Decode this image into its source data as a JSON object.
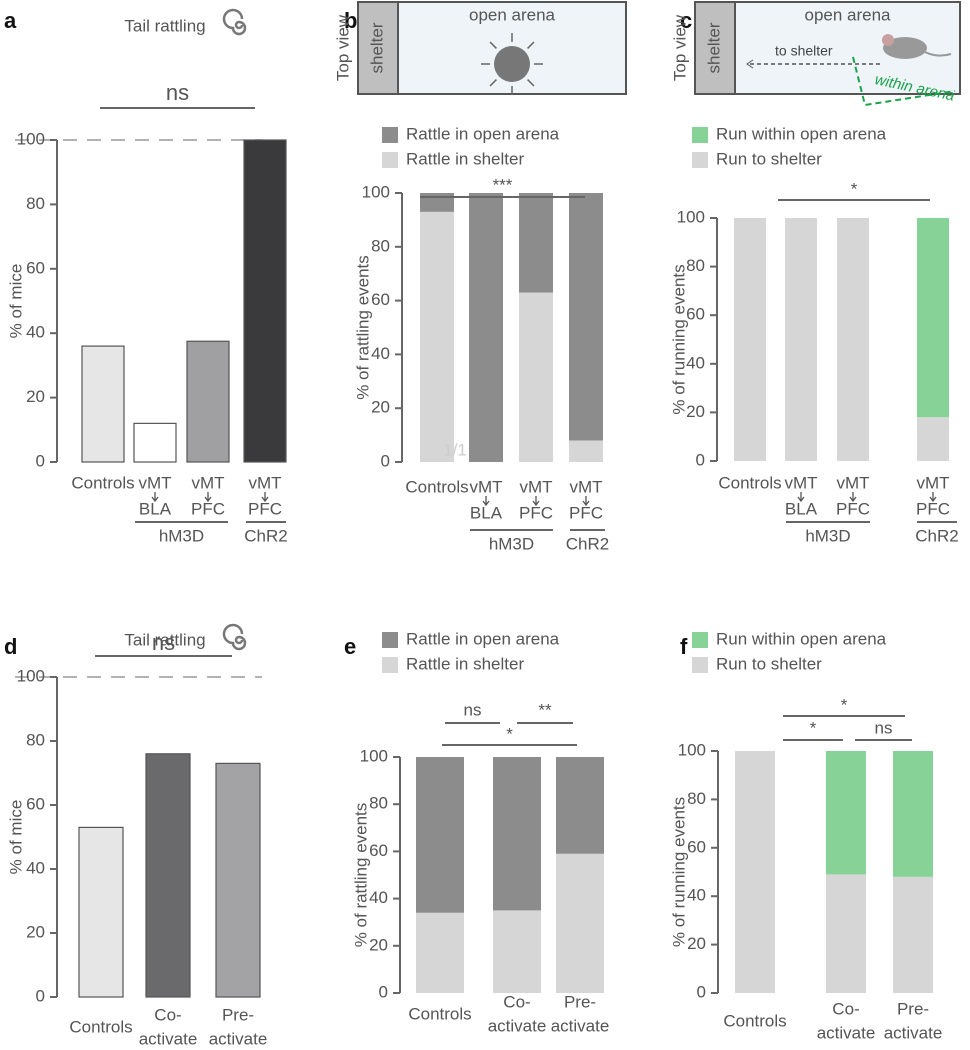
{
  "chart_data": [
    {
      "panel": "a",
      "type": "bar",
      "title": "Tail rattling",
      "y_label": "% of mice",
      "categories": [
        [
          "Controls"
        ],
        [
          "vMT",
          "BLA"
        ],
        [
          "vMT",
          "PFC"
        ],
        [
          "vMT",
          "PFC"
        ]
      ],
      "values": [
        36,
        12,
        37.5,
        100
      ],
      "colors": [
        "#e6e6e6",
        "#ffffff",
        "#a0a0a2",
        "#3a3a3c"
      ],
      "groups": [
        "hM3D",
        "ChR2"
      ],
      "annotations": [
        "ns"
      ],
      "ylim": [
        0,
        100
      ],
      "yticks": [
        0,
        20,
        40,
        60,
        80,
        100
      ]
    },
    {
      "panel": "b",
      "type": "stacked_bar",
      "y_label": "% of rattling events",
      "diagram": {
        "view": "Top view",
        "shelter": "shelter",
        "arena": "open arena"
      },
      "categories": [
        [
          "Controls"
        ],
        [
          "vMT",
          "BLA"
        ],
        [
          "vMT",
          "PFC"
        ],
        [
          "vMT",
          "PFC"
        ]
      ],
      "series": [
        {
          "name": "Rattle in open arena",
          "color": "#8c8c8c",
          "values": [
            7,
            100,
            37,
            92
          ]
        },
        {
          "name": "Rattle in shelter",
          "color": "#d6d6d6",
          "values": [
            93,
            0,
            63,
            8
          ]
        }
      ],
      "groups": [
        "hM3D",
        "ChR2"
      ],
      "annotations": [
        "***"
      ],
      "bar_note": "1/1",
      "ylim": [
        0,
        100
      ],
      "yticks": [
        0,
        20,
        40,
        60,
        80,
        100
      ]
    },
    {
      "panel": "c",
      "type": "stacked_bar",
      "y_label": "% of running events",
      "diagram": {
        "view": "Top view",
        "shelter": "shelter",
        "arena": "open arena",
        "to_shelter": "to shelter",
        "within": "within arena"
      },
      "categories": [
        [
          "Controls"
        ],
        [
          "vMT",
          "BLA"
        ],
        [
          "vMT",
          "PFC"
        ],
        [
          "vMT",
          "PFC"
        ]
      ],
      "series": [
        {
          "name": "Run within open arena",
          "color": "#86d297",
          "values": [
            0,
            0,
            0,
            82
          ]
        },
        {
          "name": "Run to shelter",
          "color": "#d6d6d6",
          "values": [
            100,
            100,
            100,
            18
          ]
        }
      ],
      "groups": [
        "hM3D",
        "ChR2"
      ],
      "annotations": [
        "*"
      ],
      "ylim": [
        0,
        100
      ],
      "yticks": [
        0,
        20,
        40,
        60,
        80,
        100
      ]
    },
    {
      "panel": "d",
      "type": "bar",
      "title": "Tail rattling",
      "y_label": "% of mice",
      "categories": [
        [
          "Controls"
        ],
        [
          "Co-",
          "activate"
        ],
        [
          "Pre-",
          "activate"
        ]
      ],
      "values": [
        53,
        76,
        73
      ],
      "colors": [
        "#e6e6e6",
        "#6a6a6c",
        "#a3a3a5"
      ],
      "annotations": [
        "ns"
      ],
      "ylim": [
        0,
        100
      ],
      "yticks": [
        0,
        20,
        40,
        60,
        80,
        100
      ]
    },
    {
      "panel": "e",
      "type": "stacked_bar",
      "y_label": "% of rattling events",
      "categories": [
        [
          "Controls"
        ],
        [
          "Co-",
          "activate"
        ],
        [
          "Pre-",
          "activate"
        ]
      ],
      "series": [
        {
          "name": "Rattle in open arena",
          "color": "#8c8c8c",
          "values": [
            66,
            65,
            41
          ]
        },
        {
          "name": "Rattle in shelter",
          "color": "#d6d6d6",
          "values": [
            34,
            35,
            59
          ]
        }
      ],
      "annotations": [
        "ns",
        "**",
        "*"
      ],
      "ylim": [
        0,
        100
      ],
      "yticks": [
        0,
        20,
        40,
        60,
        80,
        100
      ]
    },
    {
      "panel": "f",
      "type": "stacked_bar",
      "y_label": "% of running events",
      "categories": [
        [
          "Controls"
        ],
        [
          "Co-",
          "activate"
        ],
        [
          "Pre-",
          "activate"
        ]
      ],
      "series": [
        {
          "name": "Run within open arena",
          "color": "#86d297",
          "values": [
            0,
            51,
            52
          ]
        },
        {
          "name": "Run to shelter",
          "color": "#d6d6d6",
          "values": [
            100,
            49,
            48
          ]
        }
      ],
      "annotations": [
        "*",
        "*",
        "ns"
      ],
      "ylim": [
        0,
        100
      ],
      "yticks": [
        0,
        20,
        40,
        60,
        80,
        100
      ]
    }
  ]
}
